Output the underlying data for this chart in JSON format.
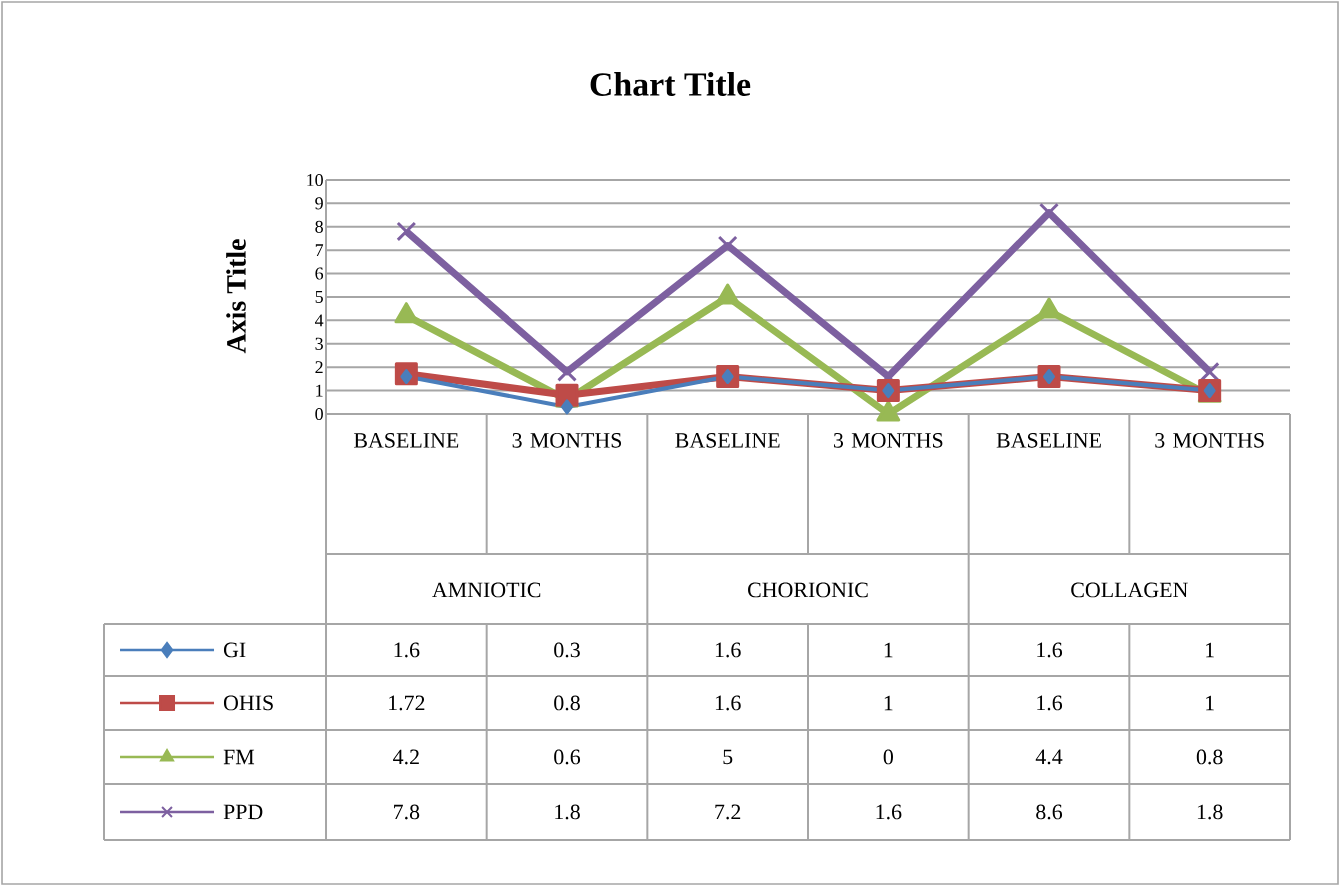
{
  "chart_data": {
    "type": "line",
    "title": "Chart Title",
    "ylabel": "Axis Title",
    "categories": [
      "BASELINE",
      "3 MONTHS",
      "BASELINE",
      "3 MONTHS",
      "BASELINE",
      "3 MONTHS"
    ],
    "annotations": [
      "AMNIOTIC",
      "CHORIONIC",
      "COLLAGEN"
    ],
    "series": [
      {
        "name": "GI",
        "color": "#4a7ebb",
        "marker": "diamond",
        "values": [
          1.6,
          0.3,
          1.6,
          1,
          1.6,
          1
        ]
      },
      {
        "name": "OHIS",
        "color": "#be4b48",
        "marker": "square",
        "values": [
          1.72,
          0.8,
          1.6,
          1,
          1.6,
          1
        ]
      },
      {
        "name": "FM",
        "color": "#98b954",
        "marker": "triangle",
        "values": [
          4.2,
          0.6,
          5,
          0,
          4.4,
          0.8
        ]
      },
      {
        "name": "PPD",
        "color": "#7d60a0",
        "marker": "cross",
        "values": [
          7.8,
          1.8,
          7.2,
          1.6,
          8.6,
          1.8
        ]
      }
    ],
    "ylim": [
      0,
      10
    ],
    "yticks": [
      0,
      1,
      2,
      3,
      4,
      5,
      6,
      7,
      8,
      9,
      10
    ],
    "grid": "y",
    "legend": "bottom",
    "data_labels": true,
    "line_style": "solid"
  }
}
